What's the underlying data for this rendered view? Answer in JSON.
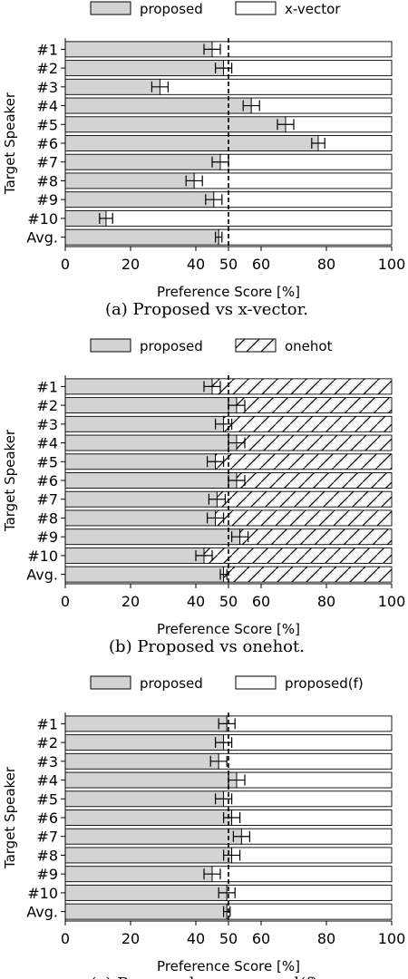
{
  "chart_data": [
    {
      "type": "bar",
      "orientation": "horizontal-stacked",
      "caption": "(a) Proposed vs x-vector.",
      "xlabel": "Preference Score [%]",
      "ylabel": "Target Speaker",
      "xlim": [
        0,
        100
      ],
      "xticks": [
        0,
        20,
        40,
        50,
        60,
        80,
        100
      ],
      "reference_line": 50,
      "categories": [
        "#1",
        "#2",
        "#3",
        "#4",
        "#5",
        "#6",
        "#7",
        "#8",
        "#9",
        "#10",
        "Avg."
      ],
      "series": [
        {
          "name": "proposed",
          "values": [
            45,
            48.5,
            29,
            57,
            67.5,
            77.5,
            47.5,
            39.5,
            45.5,
            12.5,
            47
          ],
          "fill": "#d3d3d3",
          "hatch": false
        },
        {
          "name": "x-vector",
          "values": [
            55,
            51.5,
            71,
            43,
            32.5,
            22.5,
            52.5,
            60.5,
            54.5,
            87.5,
            53
          ],
          "fill": "#ffffff",
          "hatch": false
        }
      ],
      "errors": [
        2.5,
        2.5,
        2.5,
        2.5,
        2.5,
        2,
        2.5,
        2.5,
        2.5,
        2,
        1
      ],
      "legend_position": "top"
    },
    {
      "type": "bar",
      "orientation": "horizontal-stacked",
      "caption": "(b) Proposed vs onehot.",
      "xlabel": "Preference Score [%]",
      "ylabel": "Target Speaker",
      "xlim": [
        0,
        100
      ],
      "xticks": [
        0,
        20,
        40,
        50,
        60,
        80,
        100
      ],
      "reference_line": 50,
      "categories": [
        "#1",
        "#2",
        "#3",
        "#4",
        "#5",
        "#6",
        "#7",
        "#8",
        "#9",
        "#10",
        "Avg."
      ],
      "series": [
        {
          "name": "proposed",
          "values": [
            45,
            52.5,
            48.5,
            52.5,
            46,
            52.5,
            46.5,
            46,
            53.5,
            42.5,
            48.5
          ],
          "fill": "#d3d3d3",
          "hatch": false
        },
        {
          "name": "onehot",
          "values": [
            55,
            47.5,
            51.5,
            47.5,
            54,
            47.5,
            53.5,
            54,
            46.5,
            57.5,
            51.5
          ],
          "fill": "#ffffff",
          "hatch": true
        }
      ],
      "errors": [
        2.5,
        2.5,
        2.5,
        2.5,
        2.5,
        2.5,
        2.5,
        2.5,
        2.5,
        2.5,
        1
      ],
      "legend_position": "top"
    },
    {
      "type": "bar",
      "orientation": "horizontal-stacked",
      "caption": "(c) Proposed vs proposed(f).",
      "xlabel": "Preference Score [%]",
      "ylabel": "Target Speaker",
      "xlim": [
        0,
        100
      ],
      "xticks": [
        0,
        20,
        40,
        50,
        60,
        80,
        100
      ],
      "reference_line": 50,
      "categories": [
        "#1",
        "#2",
        "#3",
        "#4",
        "#5",
        "#6",
        "#7",
        "#8",
        "#9",
        "#10",
        "Avg."
      ],
      "series": [
        {
          "name": "proposed",
          "values": [
            49.5,
            48.5,
            47,
            52.5,
            48.5,
            51,
            54,
            51,
            45,
            49.5,
            49.5
          ],
          "fill": "#d3d3d3",
          "hatch": false
        },
        {
          "name": "proposed(f)",
          "values": [
            50.5,
            51.5,
            53,
            47.5,
            51.5,
            49,
            46,
            49,
            55,
            50.5,
            50.5
          ],
          "fill": "#ffffff",
          "hatch": false
        }
      ],
      "errors": [
        2.5,
        2.5,
        2.5,
        2.5,
        2.5,
        2.5,
        2.5,
        2.5,
        2.5,
        2.5,
        1
      ],
      "legend_position": "top"
    }
  ]
}
